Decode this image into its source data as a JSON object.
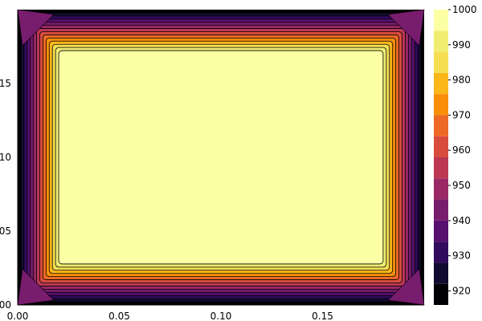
{
  "chart_data": {
    "type": "contour",
    "title": "",
    "xlabel": "",
    "ylabel": "",
    "xlim": [
      0.0,
      0.2
    ],
    "ylim": [
      0.0,
      0.2
    ],
    "x_ticks": [
      0.0,
      0.05,
      0.1,
      0.15
    ],
    "x_tick_labels": [
      "0.00",
      "0.05",
      "0.10",
      "0.15"
    ],
    "y_ticks": [
      0.05,
      0.1,
      0.15
    ],
    "y_tick_labels": [
      "05",
      "10",
      "15"
    ],
    "y_corner_label": "00",
    "colorbar": {
      "min": 916,
      "max": 1000,
      "step": 5,
      "ticks": [
        920,
        930,
        940,
        950,
        960,
        970,
        980,
        990,
        1000
      ],
      "tick_labels": [
        "920",
        "930",
        "940",
        "950",
        "960",
        "970",
        "980",
        "990",
        "1000"
      ],
      "colormap": "inferno",
      "colors": [
        "#000004",
        "#110a30",
        "#320a5e",
        "#57106e",
        "#781c6d",
        "#9a2865",
        "#bc3754",
        "#d84c3e",
        "#ed6925",
        "#f98e09",
        "#fbb61a",
        "#f4df53",
        "#f1ed71",
        "#fcffa4"
      ]
    },
    "field": {
      "description_value_range": [
        916,
        1000
      ],
      "interior_value": 999,
      "boundary_value": 916,
      "corner_value": 950
    },
    "grid": false,
    "legend": "colorbar-right"
  }
}
